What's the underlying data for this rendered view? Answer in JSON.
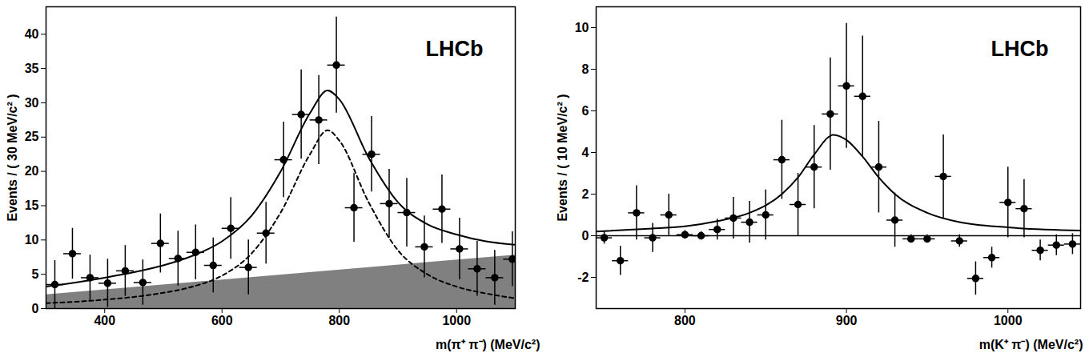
{
  "chart_data": [
    {
      "type": "scatter",
      "annotations": [
        "LHCb"
      ],
      "x_label": "m(π⁺ π⁻) (MeV/c²)",
      "y_label": "Events / ( 30 MeV/c² )",
      "xlim": [
        300,
        1100
      ],
      "xticks": [
        400,
        600,
        800,
        1000
      ],
      "ylim": [
        0,
        44
      ],
      "yticks": [
        0,
        5,
        10,
        15,
        20,
        25,
        30,
        35,
        40
      ],
      "points": {
        "color": "#000000",
        "marker": "circle",
        "x": [
          315,
          345,
          375,
          405,
          435,
          465,
          495,
          525,
          555,
          585,
          615,
          645,
          675,
          705,
          735,
          765,
          795,
          825,
          855,
          885,
          915,
          945,
          975,
          1005,
          1035,
          1065,
          1095
        ],
        "values": [
          3.5,
          8,
          4.5,
          3.7,
          5.5,
          3.8,
          9.5,
          7.3,
          8.2,
          6.3,
          11.7,
          6,
          11,
          21.7,
          28.3,
          27.5,
          35.5,
          14.7,
          22.5,
          15.3,
          14,
          9,
          14.5,
          8.7,
          5.8,
          4.5,
          7.2
        ],
        "errors": [
          3.5,
          3.7,
          3.3,
          3.5,
          3.7,
          3.3,
          4.3,
          4,
          4,
          4,
          4.5,
          4,
          4.5,
          5.5,
          6.5,
          6.5,
          7,
          5,
          5.5,
          5,
          5,
          4.5,
          5,
          4.5,
          4,
          4,
          4
        ],
        "x_errors": [
          15,
          15,
          15,
          15,
          15,
          15,
          15,
          15,
          15,
          15,
          15,
          15,
          15,
          15,
          15,
          15,
          15,
          15,
          15,
          15,
          15,
          15,
          15,
          15,
          15,
          15,
          15
        ]
      },
      "curves": [
        {
          "type": "area",
          "color": "#808080",
          "x": [
            300,
            1100
          ],
          "values": [
            2,
            7.8
          ]
        },
        {
          "type": "line",
          "color": "#000000",
          "line_style": "dashed",
          "x": [
            300,
            350,
            400,
            450,
            500,
            550,
            600,
            650,
            700,
            750,
            780,
            800,
            850,
            900,
            950,
            1000,
            1050,
            1100
          ],
          "values": [
            0.8,
            1,
            1.3,
            1.7,
            2.3,
            3.2,
            4.8,
            8,
            14,
            22.5,
            26,
            24.5,
            15.5,
            8.5,
            5,
            3.2,
            2.2,
            1.5
          ]
        },
        {
          "type": "line",
          "color": "#000000",
          "line_style": "solid",
          "x": [
            300,
            350,
            400,
            450,
            500,
            550,
            600,
            650,
            700,
            750,
            780,
            800,
            850,
            900,
            950,
            1000,
            1050,
            1100
          ],
          "values": [
            3.2,
            3.8,
            4.5,
            5.3,
            6.3,
            7.7,
            9.8,
            13.5,
            20,
            28.5,
            31.8,
            30.5,
            22,
            15.5,
            12.3,
            10.8,
            9.8,
            9.3
          ]
        }
      ]
    },
    {
      "type": "scatter",
      "annotations": [
        "LHCb"
      ],
      "x_label": "m(K⁺ π⁻) (MeV/c²)",
      "y_label": "Events / ( 10 MeV/c² )",
      "xlim": [
        745,
        1045
      ],
      "xticks": [
        800,
        900,
        1000
      ],
      "ylim": [
        -3.5,
        11
      ],
      "yticks": [
        -2,
        0,
        2,
        4,
        6,
        8,
        10
      ],
      "hline": 0,
      "points": {
        "color": "#000000",
        "marker": "circle",
        "x": [
          750,
          760,
          770,
          780,
          790,
          800,
          810,
          820,
          830,
          840,
          850,
          860,
          870,
          880,
          890,
          900,
          910,
          920,
          930,
          940,
          950,
          960,
          970,
          980,
          990,
          1000,
          1010,
          1020,
          1030,
          1040
        ],
        "values": [
          -0.1,
          -1.2,
          1.1,
          -0.1,
          1.0,
          0.05,
          0.0,
          0.3,
          0.85,
          0.65,
          1.0,
          3.65,
          1.5,
          3.3,
          5.85,
          7.2,
          6.7,
          3.3,
          0.75,
          -0.15,
          -0.15,
          2.85,
          -0.25,
          -2.05,
          -1.05,
          1.6,
          1.3,
          -0.7,
          -0.45,
          -0.4
        ],
        "errors": [
          0.3,
          0.7,
          1.3,
          0.7,
          1.0,
          0.2,
          0.2,
          0.5,
          1.0,
          1.0,
          1.2,
          1.9,
          1.5,
          2.0,
          2.7,
          3.0,
          2.9,
          2.2,
          1.3,
          0.2,
          0.2,
          2.0,
          0.3,
          0.8,
          0.5,
          1.7,
          1.4,
          0.5,
          0.5,
          0.5
        ],
        "x_errors": [
          5,
          5,
          5,
          5,
          5,
          5,
          5,
          5,
          5,
          5,
          5,
          5,
          5,
          5,
          5,
          5,
          5,
          5,
          5,
          5,
          5,
          5,
          5,
          5,
          5,
          5,
          5,
          5,
          5,
          5
        ]
      },
      "curves": [
        {
          "type": "line",
          "color": "#000000",
          "line_style": "solid",
          "x": [
            745,
            780,
            800,
            820,
            840,
            860,
            870,
            880,
            892,
            900,
            910,
            920,
            930,
            950,
            970,
            1000,
            1045
          ],
          "values": [
            0.2,
            0.35,
            0.45,
            0.7,
            1.1,
            2,
            2.8,
            3.9,
            4.85,
            4.6,
            3.8,
            2.8,
            2,
            1.1,
            0.65,
            0.4,
            0.25
          ]
        }
      ]
    }
  ]
}
